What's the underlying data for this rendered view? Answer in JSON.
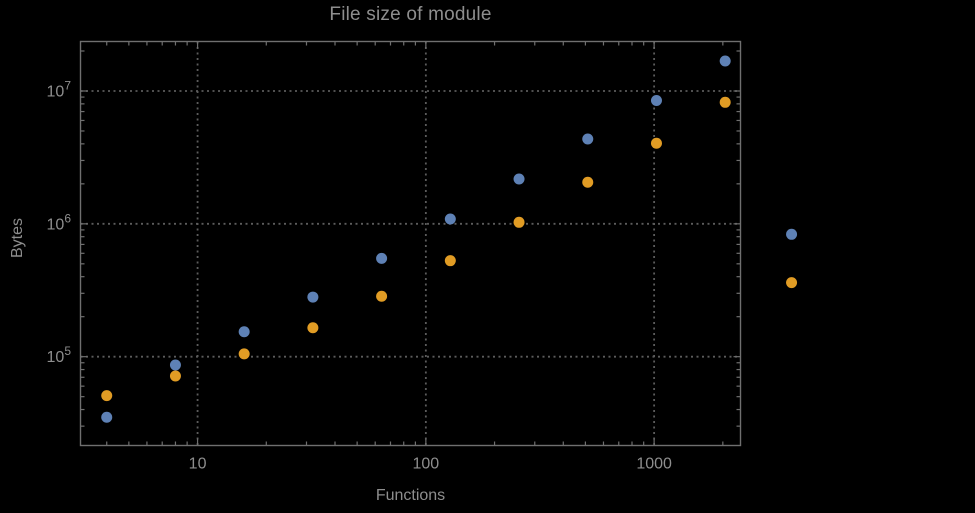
{
  "chart_data": {
    "type": "scatter",
    "title": "File size of module",
    "xlabel": "Functions",
    "ylabel": "Bytes",
    "x_scale": "log",
    "y_scale": "log",
    "xlim": [
      3.07,
      2390
    ],
    "ylim": [
      21450,
      23580000
    ],
    "grid": {
      "style": "dotted",
      "x_values": [
        10,
        100,
        1000
      ],
      "y_values": [
        100000,
        1000000,
        10000000
      ]
    },
    "x_ticks": {
      "major": [
        {
          "value": 10,
          "label": "10"
        },
        {
          "value": 100,
          "label": "100"
        },
        {
          "value": 1000,
          "label": "1000"
        }
      ]
    },
    "y_ticks": {
      "major": [
        {
          "value": 100000,
          "base": "10",
          "exp": "5"
        },
        {
          "value": 1000000,
          "base": "10",
          "exp": "6"
        },
        {
          "value": 10000000,
          "base": "10",
          "exp": "7"
        }
      ]
    },
    "legend": null,
    "points_clipped_to_frame": false,
    "series": [
      {
        "name": "blue-series",
        "color": "#5E81B5",
        "marker": "circle",
        "points": [
          [
            4,
            35000
          ],
          [
            8,
            86600
          ],
          [
            16,
            154000
          ],
          [
            32,
            281000
          ],
          [
            64,
            550000
          ],
          [
            128,
            1088000
          ],
          [
            256,
            2176000
          ],
          [
            512,
            4350000
          ],
          [
            1024,
            8480000
          ],
          [
            2048,
            16820000
          ],
          [
            4000,
            834000
          ]
        ]
      },
      {
        "name": "orange-series",
        "color": "#E19C24",
        "marker": "circle",
        "points": [
          [
            4,
            50900
          ],
          [
            8,
            71600
          ],
          [
            16,
            105000
          ],
          [
            32,
            165000
          ],
          [
            64,
            285000
          ],
          [
            128,
            528000
          ],
          [
            256,
            1027000
          ],
          [
            512,
            2055000
          ],
          [
            1024,
            4040000
          ],
          [
            2048,
            8220000
          ],
          [
            4000,
            361000
          ]
        ]
      }
    ]
  },
  "colors": {
    "background": "#000000",
    "frame": "#6f6f6f",
    "grid": "#5c5c5c",
    "text": "#8e8e8e",
    "series_blue": "#5E81B5",
    "series_orange": "#E19C24"
  }
}
